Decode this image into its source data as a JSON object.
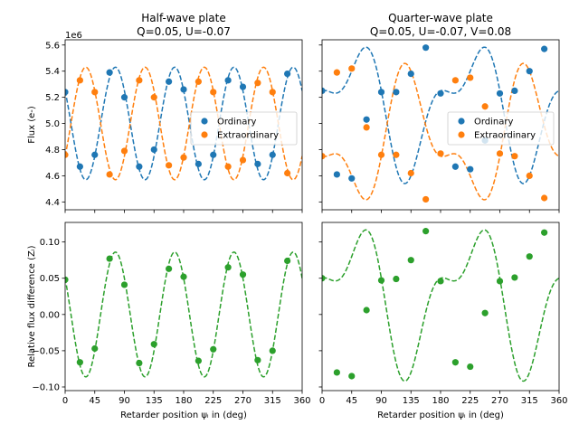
{
  "colors": {
    "ordinary": "#1f77b4",
    "extraordinary": "#ff7f0e",
    "difference": "#2ca02c"
  },
  "chart_data": [
    {
      "type": "scatter",
      "panel": "top-left",
      "title": "Half-wave plate",
      "subtitle": "Q=0.05, U=-0.07",
      "xlabel": "",
      "ylabel": "Flux (e-)",
      "y_offset_text": "1e6",
      "y_multiplier": 1000000,
      "xlim": [
        0,
        360
      ],
      "ylim": [
        4.34,
        5.64
      ],
      "xticks": [
        0,
        45,
        90,
        135,
        180,
        225,
        270,
        315,
        360
      ],
      "yticks": [
        4.4,
        4.6,
        4.8,
        5.0,
        5.2,
        5.4,
        5.6
      ],
      "ytick_labels": [
        "4.4",
        "4.6",
        "4.8",
        "5.0",
        "5.2",
        "5.4",
        "5.6"
      ],
      "show_xtick_labels": false,
      "show_ytick_labels": true,
      "legend_placement": "center-right",
      "model": {
        "plate": "half",
        "I": 5.0,
        "Q": 0.05,
        "U": -0.07,
        "V": 0
      },
      "series": [
        {
          "name": "Ordinary",
          "color_key": "ordinary",
          "x": [
            0,
            22.5,
            45,
            67.5,
            90,
            112.5,
            135,
            157.5,
            180,
            202.5,
            225,
            247.5,
            270,
            292.5,
            315,
            337.5
          ],
          "y": [
            5.24,
            4.67,
            4.76,
            5.39,
            5.2,
            4.67,
            4.8,
            5.32,
            5.26,
            4.69,
            4.76,
            5.33,
            5.28,
            4.69,
            4.76,
            5.38
          ]
        },
        {
          "name": "Extraordinary",
          "color_key": "extraordinary",
          "x": [
            0,
            22.5,
            45,
            67.5,
            90,
            112.5,
            135,
            157.5,
            180,
            202.5,
            225,
            247.5,
            270,
            292.5,
            315,
            337.5
          ],
          "y": [
            4.76,
            5.33,
            5.24,
            4.61,
            4.79,
            5.33,
            5.2,
            4.68,
            4.74,
            5.32,
            5.24,
            4.67,
            4.72,
            5.31,
            5.24,
            4.62
          ]
        }
      ]
    },
    {
      "type": "scatter",
      "panel": "top-right",
      "title": "Quarter-wave plate",
      "subtitle": "Q=0.05, U=-0.07, V=0.08",
      "xlabel": "",
      "ylabel": "",
      "xlim": [
        0,
        360
      ],
      "ylim": [
        4.34,
        5.64
      ],
      "xticks": [
        0,
        45,
        90,
        135,
        180,
        225,
        270,
        315,
        360
      ],
      "yticks": [
        4.4,
        4.6,
        4.8,
        5.0,
        5.2,
        5.4,
        5.6
      ],
      "show_xtick_labels": false,
      "show_ytick_labels": false,
      "legend_placement": "center-right",
      "model": {
        "plate": "quarter",
        "I": 5.0,
        "Q": 0.05,
        "U": -0.07,
        "V": 0.08
      },
      "series": [
        {
          "name": "Ordinary",
          "color_key": "ordinary",
          "x": [
            0,
            22.5,
            45,
            67.5,
            90,
            112.5,
            135,
            157.5,
            180,
            202.5,
            225,
            247.5,
            270,
            292.5,
            315,
            337.5
          ],
          "y": [
            5.25,
            4.61,
            4.58,
            5.03,
            5.24,
            5.24,
            5.38,
            5.58,
            5.23,
            4.67,
            4.65,
            4.87,
            5.23,
            5.25,
            5.4,
            5.57
          ]
        },
        {
          "name": "Extraordinary",
          "color_key": "extraordinary",
          "x": [
            0,
            22.5,
            45,
            67.5,
            90,
            112.5,
            135,
            157.5,
            180,
            202.5,
            225,
            247.5,
            270,
            292.5,
            315,
            337.5
          ],
          "y": [
            4.75,
            5.39,
            5.42,
            4.97,
            4.76,
            4.76,
            4.62,
            4.42,
            4.77,
            5.33,
            5.35,
            5.13,
            4.77,
            4.75,
            4.6,
            4.43
          ]
        }
      ]
    },
    {
      "type": "scatter",
      "panel": "bottom-left",
      "title": "",
      "xlabel": "Retarder position ψᵢ in (deg)",
      "ylabel": "Relative flux difference (Zᵢ)",
      "xlim": [
        0,
        360
      ],
      "ylim": [
        -0.105,
        0.127
      ],
      "xticks": [
        0,
        45,
        90,
        135,
        180,
        225,
        270,
        315,
        360
      ],
      "yticks": [
        -0.1,
        -0.05,
        0.0,
        0.05,
        0.1
      ],
      "ytick_labels": [
        "−0.10",
        "−0.05",
        "0.00",
        "0.05",
        "0.10"
      ],
      "show_xtick_labels": true,
      "show_ytick_labels": true,
      "model": {
        "plate": "half",
        "I": 0,
        "Q": 0.05,
        "U": -0.07,
        "V": 0,
        "relative": true
      },
      "series": [
        {
          "name": "",
          "color_key": "difference",
          "x": [
            0,
            22.5,
            45,
            67.5,
            90,
            112.5,
            135,
            157.5,
            180,
            202.5,
            225,
            247.5,
            270,
            292.5,
            315,
            337.5
          ],
          "y": [
            0.048,
            -0.066,
            -0.047,
            0.077,
            0.041,
            -0.067,
            -0.041,
            0.063,
            0.052,
            -0.064,
            -0.048,
            0.065,
            0.055,
            -0.063,
            -0.05,
            0.074
          ]
        }
      ]
    },
    {
      "type": "scatter",
      "panel": "bottom-right",
      "title": "",
      "xlabel": "Retarder position ψᵢ in (deg)",
      "ylabel": "",
      "xlim": [
        0,
        360
      ],
      "ylim": [
        -0.105,
        0.127
      ],
      "xticks": [
        0,
        45,
        90,
        135,
        180,
        225,
        270,
        315,
        360
      ],
      "yticks": [
        -0.1,
        -0.05,
        0.0,
        0.05,
        0.1
      ],
      "show_xtick_labels": true,
      "show_ytick_labels": false,
      "model": {
        "plate": "quarter",
        "I": 0,
        "Q": 0.05,
        "U": -0.07,
        "V": 0.08,
        "relative": true
      },
      "series": [
        {
          "name": "",
          "color_key": "difference",
          "x": [
            0,
            22.5,
            45,
            67.5,
            90,
            112.5,
            135,
            157.5,
            180,
            202.5,
            225,
            247.5,
            270,
            292.5,
            315,
            337.5
          ],
          "y": [
            0.05,
            -0.08,
            -0.085,
            0.006,
            0.047,
            0.049,
            0.075,
            0.115,
            0.046,
            -0.066,
            -0.072,
            0.002,
            0.046,
            0.051,
            0.08,
            0.113
          ]
        }
      ]
    }
  ]
}
